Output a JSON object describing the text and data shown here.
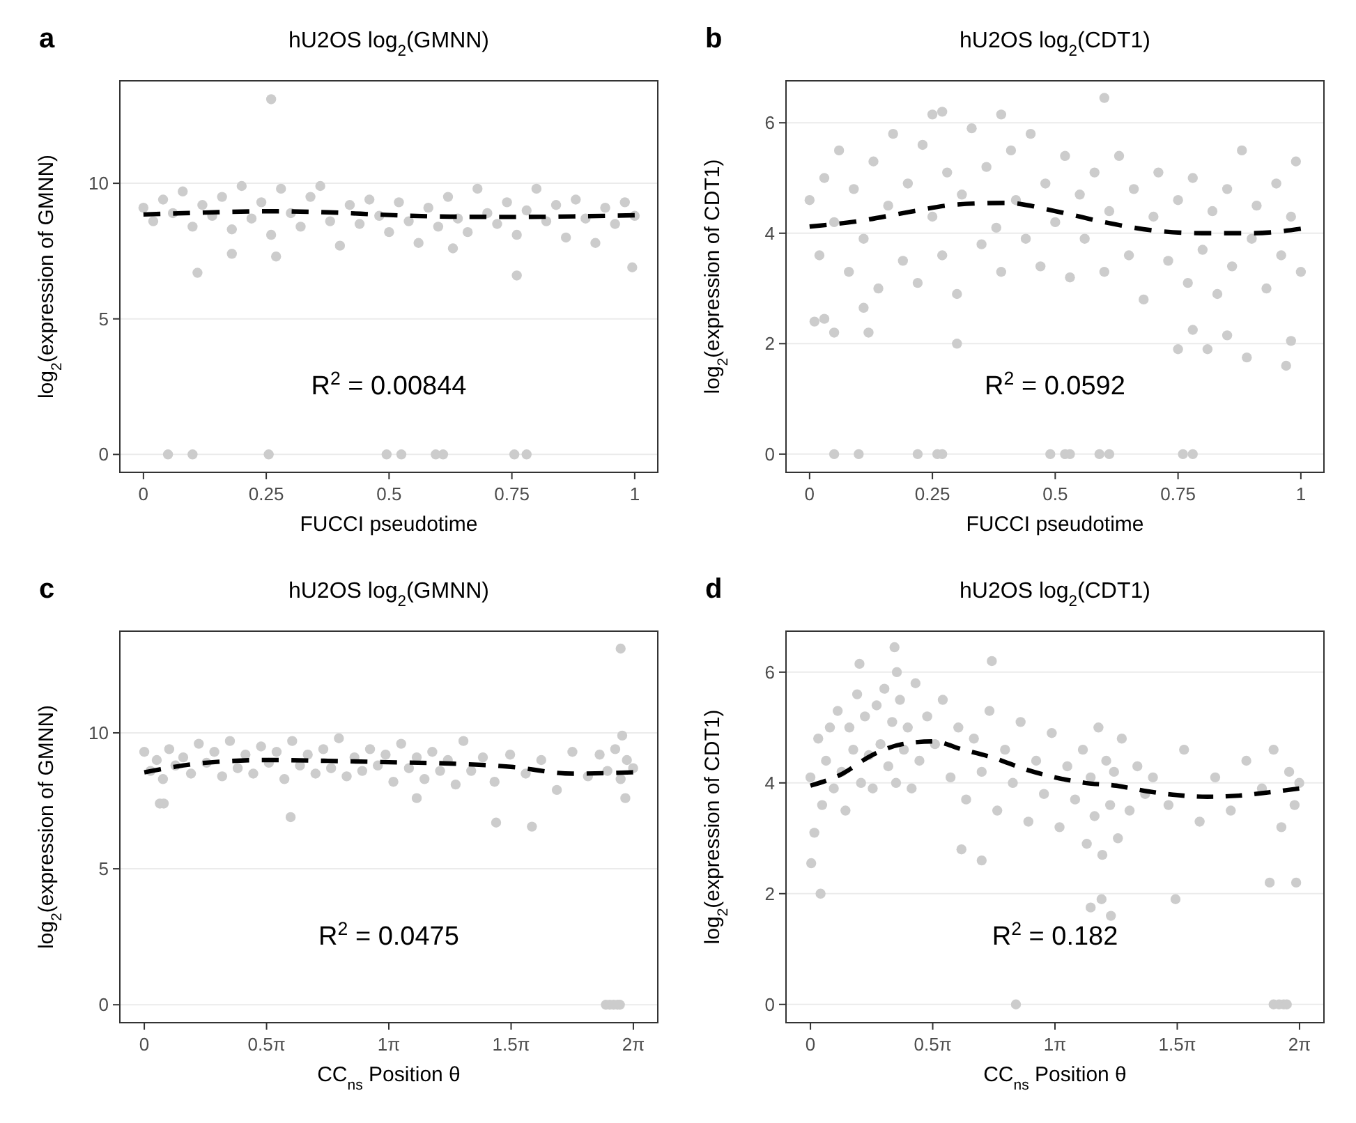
{
  "chart_data": [
    {
      "type": "scatter",
      "title": "hU2OS log$_{2}$(GMNN)",
      "xlabel": "FUCCI pseudotime",
      "ylabel": "log$_{2}$(expression of GMNN)",
      "annotations": [
        "a",
        "R$^{2}$ = 0.00844"
      ],
      "xlim": [
        -0.048,
        1.047
      ],
      "ylim": [
        -0.66,
        13.78
      ],
      "xticks": [
        0,
        0.25,
        0.5,
        0.75,
        1
      ],
      "yticks": [
        0,
        5,
        10
      ],
      "grid": "y",
      "series": [
        {
          "type": "scatter",
          "color": "#cccccc",
          "marker": "circle",
          "x": [
            0,
            0.02,
            0.04,
            0.06,
            0.08,
            0.1,
            0.12,
            0.14,
            0.16,
            0.18,
            0.2,
            0.22,
            0.24,
            0.26,
            0.28,
            0.3,
            0.32,
            0.34,
            0.36,
            0.38,
            0.4,
            0.42,
            0.44,
            0.46,
            0.48,
            0.5,
            0.52,
            0.54,
            0.56,
            0.58,
            0.6,
            0.62,
            0.64,
            0.66,
            0.68,
            0.7,
            0.72,
            0.74,
            0.76,
            0.78,
            0.8,
            0.82,
            0.84,
            0.86,
            0.88,
            0.9,
            0.92,
            0.94,
            0.96,
            0.98,
            1,
            0.26,
            0.11,
            0.76,
            0.995,
            0.18,
            0.27,
            0.63,
            0.05,
            0.1,
            0.255,
            0.495,
            0.525,
            0.595,
            0.61,
            0.755,
            0.78
          ],
          "values": [
            9.1,
            8.6,
            9.4,
            8.9,
            9.7,
            8.4,
            9.2,
            8.8,
            9.5,
            8.3,
            9.9,
            8.7,
            9.3,
            8.1,
            9.8,
            8.9,
            8.4,
            9.5,
            9.9,
            8.6,
            7.7,
            9.2,
            8.5,
            9.4,
            8.8,
            8.2,
            9.3,
            8.6,
            7.8,
            9.1,
            8.4,
            9.5,
            8.7,
            8.2,
            9.8,
            8.9,
            8.5,
            9.3,
            8.1,
            9,
            9.8,
            8.6,
            9.2,
            8,
            9.4,
            8.7,
            7.8,
            9.1,
            8.5,
            9.3,
            8.8,
            13.1,
            6.7,
            6.6,
            6.9,
            7.4,
            7.3,
            7.6,
            0,
            0,
            0,
            0,
            0,
            0,
            0,
            0,
            0
          ]
        },
        {
          "type": "line",
          "color": "#000000",
          "line_style": "dashed",
          "x": [
            0,
            0.125,
            0.25,
            0.375,
            0.5,
            0.625,
            0.75,
            0.875,
            1
          ],
          "values": [
            8.85,
            8.92,
            8.97,
            8.93,
            8.83,
            8.77,
            8.76,
            8.78,
            8.82
          ]
        }
      ]
    },
    {
      "type": "scatter",
      "title": "hU2OS log$_{2}$(CDT1)",
      "xlabel": "FUCCI pseudotime",
      "ylabel": "log$_{2}$(expression of CDT1)",
      "annotations": [
        "b",
        "R$^{2}$ = 0.0592"
      ],
      "xlim": [
        -0.048,
        1.047
      ],
      "ylim": [
        -0.33,
        6.76
      ],
      "xticks": [
        0,
        0.25,
        0.5,
        0.75,
        1
      ],
      "yticks": [
        0,
        2,
        4,
        6
      ],
      "grid": "y",
      "series": [
        {
          "type": "scatter",
          "color": "#cccccc",
          "marker": "circle",
          "x": [
            0,
            0.02,
            0.03,
            0.05,
            0.06,
            0.08,
            0.09,
            0.11,
            0.13,
            0.14,
            0.16,
            0.17,
            0.19,
            0.2,
            0.22,
            0.23,
            0.25,
            0.27,
            0.28,
            0.3,
            0.31,
            0.33,
            0.35,
            0.36,
            0.38,
            0.39,
            0.41,
            0.42,
            0.44,
            0.45,
            0.47,
            0.48,
            0.5,
            0.52,
            0.53,
            0.55,
            0.56,
            0.58,
            0.6,
            0.61,
            0.63,
            0.65,
            0.66,
            0.68,
            0.7,
            0.71,
            0.73,
            0.75,
            0.77,
            0.78,
            0.8,
            0.82,
            0.83,
            0.85,
            0.86,
            0.88,
            0.9,
            0.91,
            0.93,
            0.95,
            0.96,
            0.98,
            0.99,
            1,
            0.6,
            0.27,
            0.25,
            0.39,
            0.01,
            0.03,
            0.05,
            0.12,
            0.11,
            0.3,
            0.75,
            0.81,
            0.89,
            0.97,
            0.98,
            0.78,
            0.85,
            0.05,
            0.1,
            0.22,
            0.26,
            0.27,
            0.49,
            0.52,
            0.53,
            0.59,
            0.61,
            0.76,
            0.78
          ],
          "values": [
            4.6,
            3.6,
            5,
            4.2,
            5.5,
            3.3,
            4.8,
            3.9,
            5.3,
            3,
            4.5,
            5.8,
            3.5,
            4.9,
            3.1,
            5.6,
            4.3,
            3.6,
            5.1,
            2.9,
            4.7,
            5.9,
            3.8,
            5.2,
            4.1,
            3.3,
            5.5,
            4.6,
            3.9,
            5.8,
            3.4,
            4.9,
            4.2,
            5.4,
            3.2,
            4.7,
            3.9,
            5.1,
            3.3,
            4.4,
            5.4,
            3.6,
            4.8,
            2.8,
            4.3,
            5.1,
            3.5,
            4.6,
            3.1,
            5,
            3.7,
            4.4,
            2.9,
            4.8,
            3.4,
            5.5,
            3.9,
            4.5,
            3,
            4.9,
            3.6,
            4.3,
            5.3,
            3.3,
            6.45,
            6.2,
            6.15,
            6.15,
            2.4,
            2.45,
            2.2,
            2.2,
            2.65,
            2,
            1.9,
            1.9,
            1.75,
            1.6,
            2.05,
            2.25,
            2.15,
            0,
            0,
            0,
            0,
            0,
            0,
            0,
            0,
            0,
            0,
            0,
            0
          ]
        },
        {
          "type": "line",
          "color": "#000000",
          "line_style": "dashed",
          "x": [
            0,
            0.1,
            0.2,
            0.3,
            0.4,
            0.5,
            0.6,
            0.7,
            0.8,
            0.9,
            1
          ],
          "values": [
            4.12,
            4.22,
            4.38,
            4.52,
            4.55,
            4.4,
            4.2,
            4.05,
            4,
            4,
            4.08
          ]
        }
      ]
    },
    {
      "type": "scatter",
      "title": "hU2OS log$_{2}$(GMNN)",
      "xlabel": "CC$_{ns}$ Position θ",
      "ylabel": "log$_{2}$(expression of GMNN)",
      "annotations": [
        "c",
        "R$^{2}$ = 0.0475"
      ],
      "xlim": [
        -0.314,
        6.597
      ],
      "ylim": [
        -0.66,
        13.74
      ],
      "xticks": [
        0,
        {
          "value": 1.5708,
          "label": "0.5π"
        },
        {
          "value": 3.1416,
          "label": "1π"
        },
        {
          "value": 4.7124,
          "label": "1.5π"
        },
        {
          "value": 6.2832,
          "label": "2π"
        }
      ],
      "yticks": [
        0,
        5,
        10
      ],
      "grid": "y",
      "series": [
        {
          "type": "scatter",
          "color": "#cccccc",
          "marker": "circle",
          "x": [
            0,
            0.08,
            0.16,
            0.24,
            0.32,
            0.4,
            0.5,
            0.6,
            0.7,
            0.8,
            0.9,
            1,
            1.1,
            1.2,
            1.3,
            1.4,
            1.5,
            1.6,
            1.7,
            1.8,
            1.9,
            2,
            2.1,
            2.2,
            2.3,
            2.4,
            2.5,
            2.6,
            2.7,
            2.8,
            2.9,
            3,
            3.1,
            3.2,
            3.3,
            3.4,
            3.5,
            3.6,
            3.7,
            3.8,
            3.9,
            4,
            4.1,
            4.2,
            4.35,
            4.5,
            4.7,
            4.9,
            5.1,
            5.3,
            5.5,
            5.7,
            5.85,
            5.95,
            6.05,
            6.12,
            6.2,
            6.28,
            6.12,
            1.88,
            4.52,
            4.98,
            0.25,
            0.2,
            3.5,
            6.18,
            6.14,
            5.93,
            5.98,
            6.03,
            6.08,
            6.11
          ],
          "values": [
            9.3,
            8.6,
            9,
            8.3,
            9.4,
            8.8,
            9.1,
            8.5,
            9.6,
            8.9,
            9.3,
            8.4,
            9.7,
            8.7,
            9.2,
            8.5,
            9.5,
            8.9,
            9.3,
            8.3,
            9.7,
            8.8,
            9.2,
            8.5,
            9.4,
            8.7,
            9.8,
            8.4,
            9.1,
            8.6,
            9.4,
            8.8,
            9.2,
            8.2,
            9.6,
            8.7,
            9.1,
            8.3,
            9.3,
            8.6,
            9,
            8.1,
            9.7,
            8.6,
            9.1,
            8.2,
            9.2,
            8.5,
            9,
            7.9,
            9.3,
            8.4,
            9.2,
            8.6,
            9.4,
            8.3,
            9,
            8.7,
            13.1,
            6.9,
            6.7,
            6.55,
            7.4,
            7.4,
            7.6,
            7.6,
            9.9,
            0,
            0,
            0,
            0,
            0
          ]
        },
        {
          "type": "line",
          "color": "#000000",
          "line_style": "dashed",
          "x": [
            0,
            0.79,
            1.57,
            2.36,
            3.14,
            3.93,
            4.71,
            5.5,
            6.28
          ],
          "values": [
            8.55,
            8.9,
            9,
            8.97,
            8.92,
            8.87,
            8.75,
            8.5,
            8.55
          ]
        }
      ]
    },
    {
      "type": "scatter",
      "title": "hU2OS log$_{2}$(CDT1)",
      "xlabel": "CC$_{ns}$ Position θ",
      "ylabel": "log$_{2}$(expression of CDT1)",
      "annotations": [
        "d",
        "R$^{2}$ = 0.182"
      ],
      "xlim": [
        -0.314,
        6.597
      ],
      "ylim": [
        -0.33,
        6.74
      ],
      "xticks": [
        0,
        {
          "value": 1.5708,
          "label": "0.5π"
        },
        {
          "value": 3.1416,
          "label": "1π"
        },
        {
          "value": 4.7124,
          "label": "1.5π"
        },
        {
          "value": 6.2832,
          "label": "2π"
        }
      ],
      "yticks": [
        0,
        2,
        4,
        6
      ],
      "grid": "y",
      "series": [
        {
          "type": "scatter",
          "color": "#cccccc",
          "marker": "circle",
          "x": [
            0,
            0.05,
            0.1,
            0.15,
            0.2,
            0.25,
            0.3,
            0.35,
            0.4,
            0.45,
            0.5,
            0.55,
            0.6,
            0.65,
            0.7,
            0.75,
            0.8,
            0.85,
            0.9,
            0.95,
            1,
            1.05,
            1.1,
            1.15,
            1.2,
            1.25,
            1.3,
            1.35,
            1.4,
            1.5,
            1.6,
            1.7,
            1.8,
            1.9,
            2,
            2.1,
            2.2,
            2.3,
            2.4,
            2.5,
            2.6,
            2.7,
            2.8,
            2.9,
            3,
            3.1,
            3.2,
            3.3,
            3.4,
            3.5,
            3.55,
            3.6,
            3.65,
            3.7,
            3.75,
            3.8,
            3.85,
            3.9,
            3.95,
            4,
            4.1,
            4.2,
            4.3,
            4.4,
            4.6,
            4.8,
            5,
            5.2,
            5.4,
            5.6,
            5.8,
            5.95,
            6.05,
            6.15,
            6.22,
            6.28,
            0.13,
            0.01,
            3.6,
            3.86,
            3.74,
            4.69,
            5.9,
            6.24,
            2.2,
            1.94,
            1.08,
            0.63,
            2.33,
            1.11,
            2.64,
            5.95,
            6.02,
            6.08,
            6.12
          ],
          "values": [
            4.1,
            3.1,
            4.8,
            3.6,
            4.4,
            5,
            3.9,
            5.3,
            4.2,
            3.5,
            5,
            4.6,
            5.6,
            4,
            5.2,
            4.5,
            3.9,
            5.4,
            4.7,
            5.7,
            4.3,
            5.1,
            4,
            5.5,
            4.6,
            5,
            3.9,
            5.8,
            4.4,
            5.2,
            4.7,
            5.5,
            4.1,
            5,
            3.7,
            4.8,
            4.2,
            5.3,
            3.5,
            4.6,
            4,
            5.1,
            3.3,
            4.4,
            3.8,
            4.9,
            3.2,
            4.3,
            3.7,
            4.6,
            2.9,
            4.1,
            3.4,
            5,
            2.7,
            4.4,
            3.6,
            4.2,
            3,
            4.8,
            3.5,
            4.3,
            3.8,
            4.1,
            3.6,
            4.6,
            3.3,
            4.1,
            3.5,
            4.4,
            3.9,
            4.6,
            3.2,
            4.2,
            3.6,
            4,
            2,
            2.55,
            1.75,
            1.6,
            1.9,
            1.9,
            2.2,
            2.2,
            2.6,
            2.8,
            6.45,
            6.15,
            6.2,
            6,
            0,
            0,
            0,
            0,
            0
          ]
        },
        {
          "type": "line",
          "color": "#000000",
          "line_style": "dashed",
          "x": [
            0,
            0.39,
            0.79,
            1.18,
            1.57,
            1.96,
            2.36,
            2.75,
            3.14,
            3.53,
            3.93,
            4.32,
            4.71,
            5.1,
            5.5,
            5.89,
            6.28
          ],
          "values": [
            3.95,
            4.15,
            4.5,
            4.7,
            4.75,
            4.6,
            4.45,
            4.25,
            4.1,
            4,
            3.95,
            3.85,
            3.78,
            3.75,
            3.77,
            3.83,
            3.9
          ]
        }
      ]
    }
  ]
}
